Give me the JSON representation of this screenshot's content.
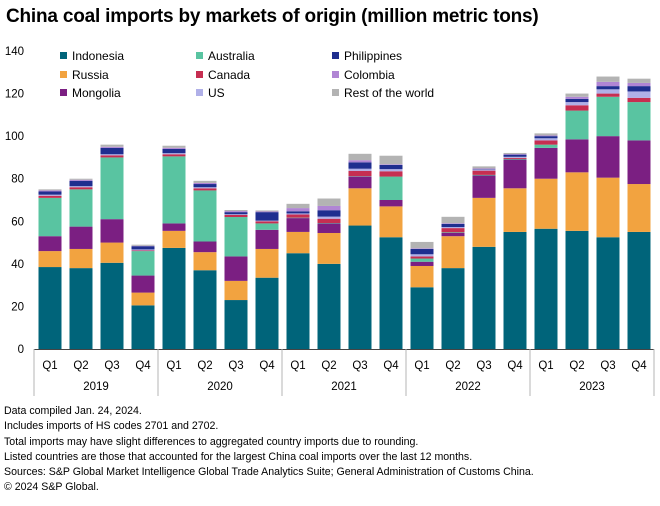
{
  "chart_data": {
    "type": "bar",
    "stacked": true,
    "title": "China coal imports by markets of origin (million metric tons)",
    "xlabel": "",
    "ylabel": "",
    "ylim": [
      0,
      140
    ],
    "yticks": [
      0,
      20,
      40,
      60,
      80,
      100,
      120,
      140
    ],
    "grid": false,
    "legend_position": "top-left",
    "categories": [
      "Q1",
      "Q2",
      "Q3",
      "Q4",
      "Q1",
      "Q2",
      "Q3",
      "Q4",
      "Q1",
      "Q2",
      "Q3",
      "Q4",
      "Q1",
      "Q2",
      "Q3",
      "Q4",
      "Q1",
      "Q2",
      "Q3",
      "Q4"
    ],
    "groups": [
      "2019",
      "2020",
      "2021",
      "2022",
      "2023"
    ],
    "series": [
      {
        "name": "Indonesia",
        "color": "#00647a",
        "values": [
          38.5,
          38,
          40.5,
          20.5,
          47.5,
          37,
          23,
          33.5,
          45,
          40,
          58,
          52.5,
          29,
          38,
          48,
          55,
          56.5,
          55.5,
          52.5,
          55
        ]
      },
      {
        "name": "Russia",
        "color": "#f2a340",
        "values": [
          7.5,
          9,
          9.5,
          6,
          8,
          8.5,
          9,
          13.5,
          10,
          14.5,
          17.5,
          14.5,
          10,
          15,
          23,
          20.5,
          23.5,
          27.5,
          28,
          22.5
        ]
      },
      {
        "name": "Mongolia",
        "color": "#7b1f82",
        "values": [
          7,
          10.5,
          11,
          8,
          3.5,
          5,
          11.5,
          9,
          6.5,
          4.5,
          5.5,
          3,
          2,
          1.5,
          10.5,
          13.5,
          14.5,
          15.5,
          19.5,
          20.5
        ]
      },
      {
        "name": "Australia",
        "color": "#59c4a1",
        "values": [
          18,
          17.5,
          29,
          11.5,
          31.5,
          24,
          18.5,
          3,
          0.2,
          0.2,
          0.2,
          11,
          1.5,
          0.3,
          0.3,
          0.3,
          1.5,
          13.5,
          18.5,
          18
        ]
      },
      {
        "name": "Canada",
        "color": "#c62e51",
        "values": [
          1,
          1,
          1,
          0.3,
          1,
          1,
          1,
          1,
          1.5,
          2,
          2.5,
          2.5,
          1,
          2,
          2,
          0.5,
          2,
          2.5,
          1.5,
          2
        ]
      },
      {
        "name": "US",
        "color": "#b0b0e8",
        "values": [
          0.5,
          0.5,
          0.5,
          0.5,
          0.5,
          0.5,
          0.3,
          0.3,
          0.5,
          1,
          1,
          1,
          1,
          0.5,
          0.5,
          0.5,
          1,
          1.5,
          2,
          3
        ]
      },
      {
        "name": "Philippines",
        "color": "#1f2e8f",
        "values": [
          1.5,
          2.5,
          3,
          1.5,
          2,
          1.5,
          1,
          4,
          1,
          3,
          3,
          2,
          2.5,
          1.5,
          0.2,
          1,
          1,
          1.5,
          1.5,
          2.5
        ]
      },
      {
        "name": "Colombia",
        "color": "#b085d4",
        "values": [
          0.5,
          0.5,
          0.5,
          0.2,
          0.5,
          0.5,
          0.5,
          0.3,
          1.5,
          2,
          1,
          0.3,
          0.3,
          0.3,
          0.3,
          0.3,
          0.3,
          1,
          2,
          1.5
        ]
      },
      {
        "name": "Rest of the world",
        "color": "#b3b3b3",
        "values": [
          0.5,
          0.5,
          1,
          0.5,
          1,
          1,
          0.5,
          0.5,
          2,
          3.5,
          3,
          4,
          3,
          3,
          1,
          0.5,
          1,
          1.5,
          2.5,
          2
        ]
      }
    ]
  },
  "footnotes": [
    "Data compiled Jan. 24, 2024.",
    "Includes imports of HS codes 2701 and 2702.",
    "Total imports may have slight differences to aggregated country imports due to rounding.",
    "Listed countries are those that accounted for the largest China coal imports over the last 12 months.",
    "Sources: S&P Global Market Intelligence Global Trade Analytics Suite; General Administration of Customs China.",
    "© 2024 S&P Global."
  ]
}
